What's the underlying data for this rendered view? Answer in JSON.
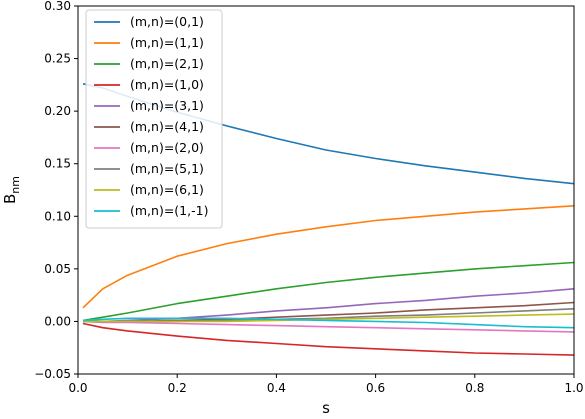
{
  "chart_data": {
    "type": "line",
    "xlabel": "s",
    "ylabel": "B",
    "ylabel_sub": "nm",
    "xlim": [
      0.0,
      1.0
    ],
    "ylim": [
      -0.05,
      0.3
    ],
    "xticks": [
      "0.0",
      "0.2",
      "0.4",
      "0.6",
      "0.8",
      "1.0"
    ],
    "yticks": [
      "−0.05",
      "0.00",
      "0.05",
      "0.10",
      "0.15",
      "0.20",
      "0.25",
      "0.30"
    ],
    "grid": false,
    "legend_position": "top-left",
    "x": [
      0.01,
      0.05,
      0.1,
      0.2,
      0.3,
      0.4,
      0.5,
      0.6,
      0.7,
      0.8,
      0.9,
      1.0
    ],
    "series": [
      {
        "name": "(m,n)=(0,1)",
        "color": "#1f77b4",
        "values": [
          0.226,
          0.222,
          0.214,
          0.199,
          0.186,
          0.174,
          0.163,
          0.155,
          0.148,
          0.142,
          0.136,
          0.131
        ]
      },
      {
        "name": "(m,n)=(1,1)",
        "color": "#ff7f0e",
        "values": [
          0.013,
          0.031,
          0.044,
          0.062,
          0.074,
          0.083,
          0.09,
          0.096,
          0.1,
          0.104,
          0.107,
          0.11
        ]
      },
      {
        "name": "(m,n)=(2,1)",
        "color": "#2ca02c",
        "values": [
          0.001,
          0.004,
          0.008,
          0.017,
          0.024,
          0.031,
          0.037,
          0.042,
          0.046,
          0.05,
          0.053,
          0.056
        ]
      },
      {
        "name": "(m,n)=(1,0)",
        "color": "#d62728",
        "values": [
          -0.002,
          -0.006,
          -0.009,
          -0.014,
          -0.018,
          -0.021,
          -0.024,
          -0.026,
          -0.028,
          -0.03,
          -0.031,
          -0.032
        ]
      },
      {
        "name": "(m,n)=(3,1)",
        "color": "#9467bd",
        "values": [
          0.0,
          0.0,
          0.001,
          0.003,
          0.006,
          0.01,
          0.013,
          0.017,
          0.02,
          0.024,
          0.027,
          0.031
        ]
      },
      {
        "name": "(m,n)=(4,1)",
        "color": "#8c564b",
        "values": [
          0.0,
          0.0,
          0.0,
          0.001,
          0.002,
          0.004,
          0.006,
          0.008,
          0.011,
          0.013,
          0.015,
          0.018
        ]
      },
      {
        "name": "(m,n)=(2,0)",
        "color": "#e377c2",
        "values": [
          0.0,
          -0.001,
          -0.001,
          -0.002,
          -0.003,
          -0.004,
          -0.005,
          -0.006,
          -0.007,
          -0.008,
          -0.009,
          -0.01
        ]
      },
      {
        "name": "(m,n)=(5,1)",
        "color": "#7f7f7f",
        "values": [
          0.0,
          0.0,
          0.0,
          0.0,
          0.001,
          0.002,
          0.003,
          0.005,
          0.006,
          0.008,
          0.01,
          0.012
        ]
      },
      {
        "name": "(m,n)=(6,1)",
        "color": "#bcbd22",
        "values": [
          0.0,
          0.0,
          0.0,
          0.0,
          0.0,
          0.001,
          0.002,
          0.003,
          0.004,
          0.005,
          0.006,
          0.007
        ]
      },
      {
        "name": "(m,n)=(1,-1)",
        "color": "#17becf",
        "values": [
          0.001,
          0.002,
          0.003,
          0.003,
          0.003,
          0.002,
          0.001,
          0.0,
          -0.001,
          -0.003,
          -0.005,
          -0.006
        ]
      }
    ]
  }
}
